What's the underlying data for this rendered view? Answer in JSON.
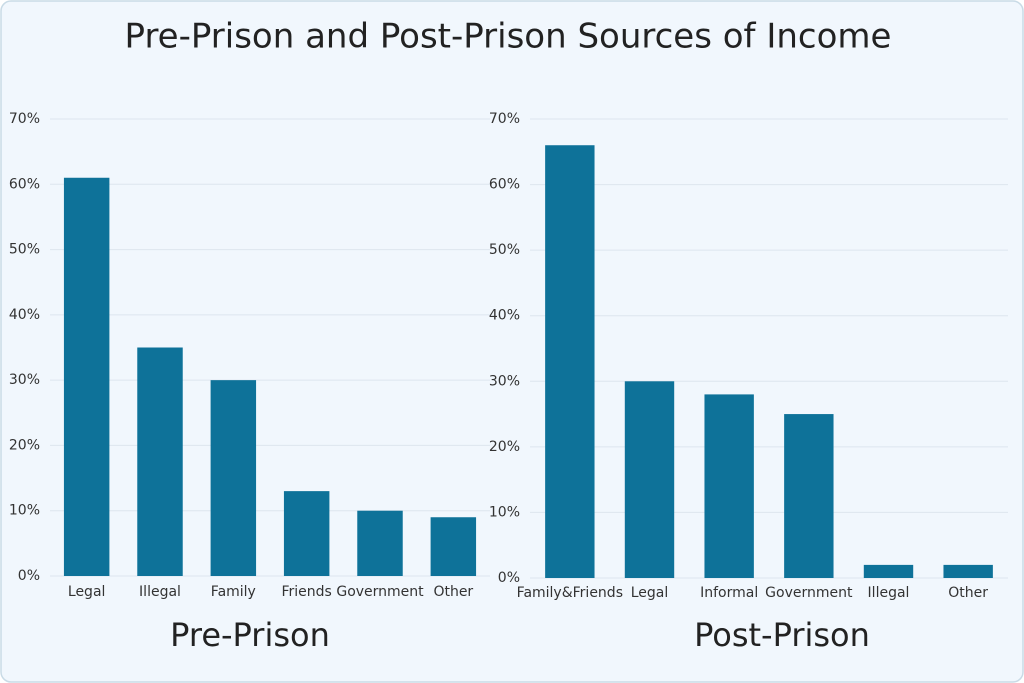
{
  "title": "Pre-Prison and Post-Prison Sources of Income",
  "chart_data": [
    {
      "type": "bar",
      "title": "Pre-Prison",
      "categories": [
        "Legal",
        "Illegal",
        "Family",
        "Friends",
        "Government",
        "Other"
      ],
      "values": [
        61,
        35,
        30,
        13,
        10,
        9
      ],
      "color": "#0e7299",
      "ylim": [
        0,
        70
      ],
      "yticks": [
        {
          "value": 0,
          "label": "0%"
        },
        {
          "value": 10,
          "label": "10%"
        },
        {
          "value": 20,
          "label": "20%"
        },
        {
          "value": 30,
          "label": "30%"
        },
        {
          "value": 40,
          "label": "40%"
        },
        {
          "value": 50,
          "label": "50%"
        },
        {
          "value": 60,
          "label": "60%"
        },
        {
          "value": 70,
          "label": "70%"
        }
      ],
      "grid": true
    },
    {
      "type": "bar",
      "title": "Post-Prison",
      "categories": [
        "Family&Friends",
        "Legal",
        "Informal",
        "Government",
        "Illegal",
        "Other"
      ],
      "values": [
        66,
        30,
        28,
        25,
        2,
        2
      ],
      "color": "#0e7299",
      "ylim": [
        0,
        70
      ],
      "yticks": [
        {
          "value": 0,
          "label": "0%"
        },
        {
          "value": 10,
          "label": "10%"
        },
        {
          "value": 20,
          "label": "20%"
        },
        {
          "value": 30,
          "label": "30%"
        },
        {
          "value": 40,
          "label": "40%"
        },
        {
          "value": 50,
          "label": "50%"
        },
        {
          "value": 60,
          "label": "60%"
        },
        {
          "value": 70,
          "label": "70%"
        }
      ],
      "grid": true
    }
  ]
}
